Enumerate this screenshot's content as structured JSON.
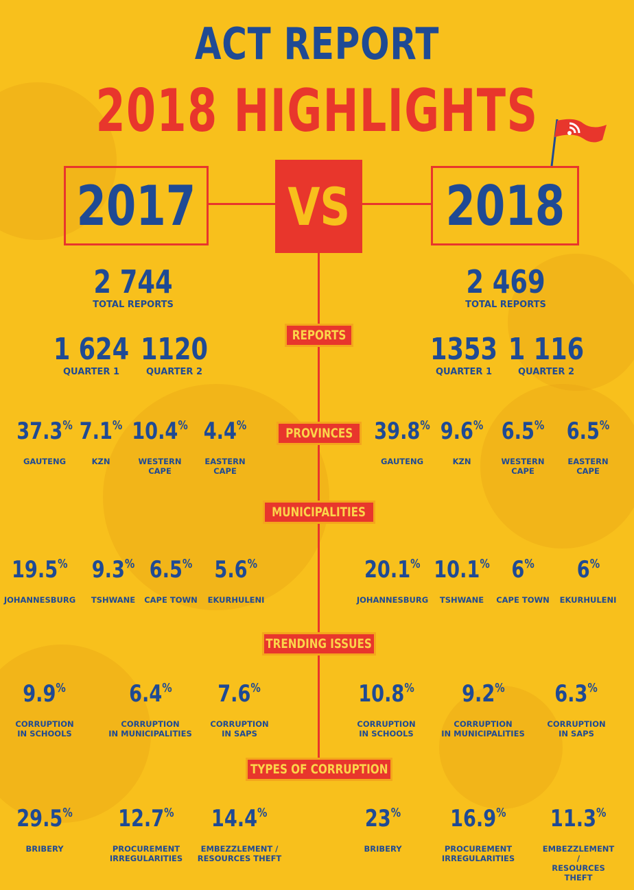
{
  "header": {
    "title": "ACT REPORT",
    "subtitle": "2018 HIGHLIGHTS"
  },
  "colors": {
    "background": "#F8C01C",
    "accent_red": "#E8362C",
    "text_blue": "#1F4A94",
    "pill_text": "#FBD54A"
  },
  "icons": {
    "logo": "flag-logo-icon"
  },
  "comparison": {
    "left_year": "2017",
    "vs_label": "VS",
    "right_year": "2018"
  },
  "units": {
    "pct": "%"
  },
  "totals": {
    "left": {
      "value": "2 744",
      "label": "TOTAL REPORTS"
    },
    "right": {
      "value": "2 469",
      "label": "TOTAL REPORTS"
    }
  },
  "sections": {
    "reports": "REPORTS",
    "provinces": "PROVINCES",
    "municipalities": "MUNICIPALITIES",
    "trending": "TRENDING ISSUES",
    "types": "TYPES OF CORRUPTION"
  },
  "reports": {
    "left": [
      {
        "value": "1 624",
        "label": "QUARTER 1"
      },
      {
        "value": "1120",
        "label": "QUARTER 2"
      }
    ],
    "right": [
      {
        "value": "1353",
        "label": "QUARTER 1"
      },
      {
        "value": "1 116",
        "label": "QUARTER 2"
      }
    ]
  },
  "provinces": {
    "left": [
      {
        "value": "37.3",
        "label": "GAUTENG"
      },
      {
        "value": "7.1",
        "label": "KZN"
      },
      {
        "value": "10.4",
        "label": "WESTERN\nCAPE"
      },
      {
        "value": "4.4",
        "label": "EASTERN\nCAPE"
      }
    ],
    "right": [
      {
        "value": "39.8",
        "label": "GAUTENG"
      },
      {
        "value": "9.6",
        "label": "KZN"
      },
      {
        "value": "6.5",
        "label": "WESTERN\nCAPE"
      },
      {
        "value": "6.5",
        "label": "EASTERN\nCAPE"
      }
    ]
  },
  "municipalities": {
    "left": [
      {
        "value": "19.5",
        "label": "JOHANNESBURG"
      },
      {
        "value": "9.3",
        "label": "TSHWANE"
      },
      {
        "value": "6.5",
        "label": "CAPE TOWN"
      },
      {
        "value": "5.6",
        "label": "EKURHULENI"
      }
    ],
    "right": [
      {
        "value": "20.1",
        "label": "JOHANNESBURG"
      },
      {
        "value": "10.1",
        "label": "TSHWANE"
      },
      {
        "value": "6",
        "label": "CAPE TOWN"
      },
      {
        "value": "6",
        "label": "EKURHULENI"
      }
    ]
  },
  "trending": {
    "left": [
      {
        "value": "9.9",
        "label": "CORRUPTION\nIN SCHOOLS"
      },
      {
        "value": "6.4",
        "label": "CORRUPTION\nIN MUNICIPALITIES"
      },
      {
        "value": "7.6",
        "label": "CORRUPTION\nIN SAPS"
      }
    ],
    "right": [
      {
        "value": "10.8",
        "label": "CORRUPTION\nIN SCHOOLS"
      },
      {
        "value": "9.2",
        "label": "CORRUPTION\nIN MUNICIPALITIES"
      },
      {
        "value": "6.3",
        "label": "CORRUPTION\nIN SAPS"
      }
    ]
  },
  "types": {
    "left": [
      {
        "value": "29.5",
        "label": "BRIBERY"
      },
      {
        "value": "12.7",
        "label": "PROCUREMENT\nIRREGULARITIES"
      },
      {
        "value": "14.4",
        "label": "EMBEZZLEMENT /\nRESOURCES THEFT"
      }
    ],
    "right": [
      {
        "value": "23",
        "label": "BRIBERY"
      },
      {
        "value": "16.9",
        "label": "PROCUREMENT\nIRREGULARITIES"
      },
      {
        "value": "11.3",
        "label": "EMBEZZLEMENT /\nRESOURCES THEFT"
      }
    ]
  }
}
